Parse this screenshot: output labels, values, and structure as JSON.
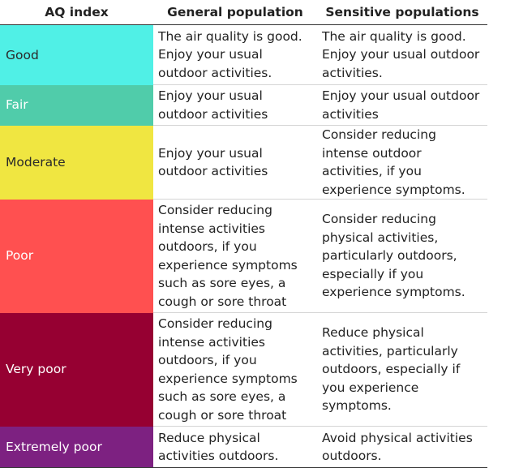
{
  "table": {
    "headers": [
      "AQ index",
      "General population",
      "Sensitive populations"
    ],
    "rows": [
      {
        "index": "Good",
        "color": "#50f0e6",
        "general": "The air quality is good. Enjoy your usual outdoor activities.",
        "sensitive": "The air quality is good. Enjoy your usual outdoor activities."
      },
      {
        "index": "Fair",
        "color": "#50ccaa",
        "general": "Enjoy your usual outdoor activities",
        "sensitive": "Enjoy your usual outdoor activities"
      },
      {
        "index": "Moderate",
        "color": "#f0e641",
        "general": "Enjoy your usual outdoor activities",
        "sensitive": "Consider reducing intense outdoor activities, if you experience symptoms."
      },
      {
        "index": "Poor",
        "color": "#ff5050",
        "general": "Consider reducing intense activities outdoors, if you experience symptoms such as sore eyes, a cough or sore throat",
        "sensitive": "Consider reducing physical activities, particularly outdoors, especially if you experience symptoms."
      },
      {
        "index": "Very poor",
        "color": "#960032",
        "general": "Consider reducing intense activities outdoors, if you experience symptoms such as sore eyes, a cough or sore throat",
        "sensitive": "Reduce physical activities, particularly outdoors, especially if you experience symptoms."
      },
      {
        "index": "Extremely poor",
        "color": "#7d2181",
        "general": "Reduce physical activities outdoors.",
        "sensitive": "Avoid physical activities outdoors."
      }
    ]
  }
}
